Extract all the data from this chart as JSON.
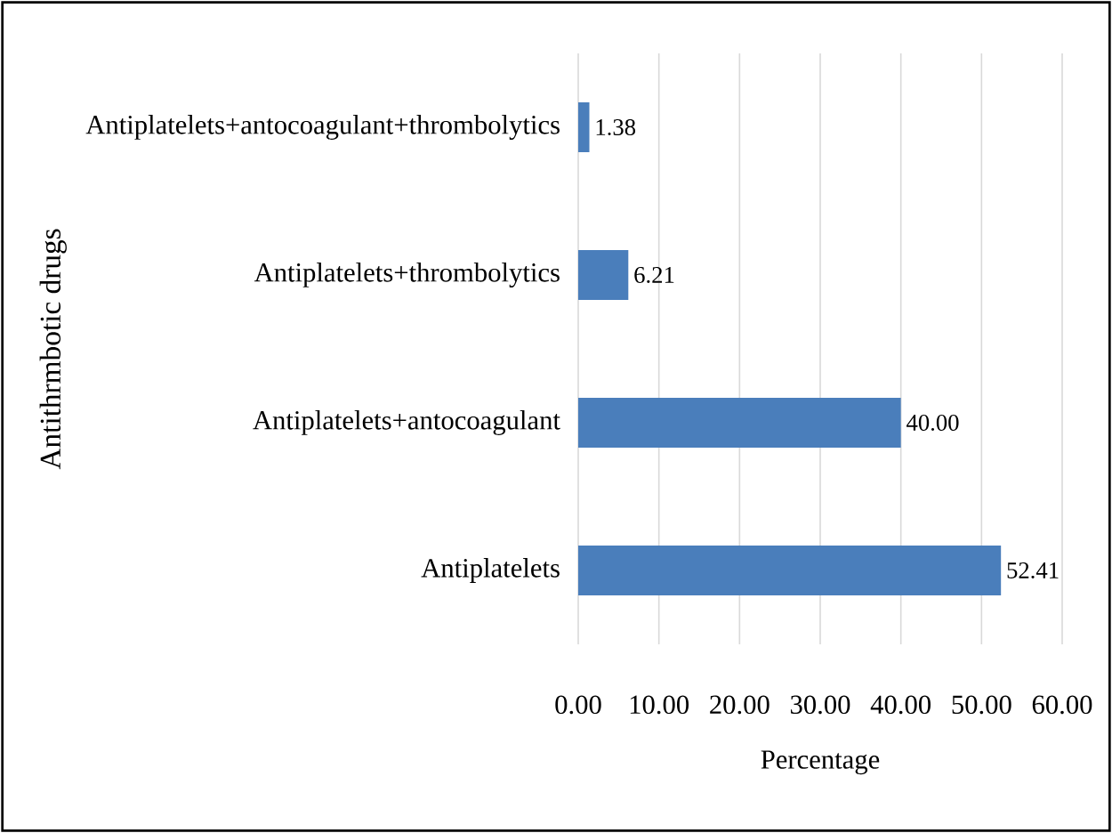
{
  "chart_data": {
    "type": "bar",
    "orientation": "horizontal",
    "ylabel": "Antithrmbotic drugs",
    "xlabel": "Percentage",
    "categories": [
      "Antiplatelets+antocoagulant+thrombolytics",
      "Antiplatelets+thrombolytics",
      "Antiplatelets+antocoagulant",
      "Antiplatelets"
    ],
    "values": [
      1.38,
      6.21,
      40.0,
      52.41
    ],
    "value_labels": [
      "1.38",
      "6.21",
      "40.00",
      "52.41"
    ],
    "color": "#4a7ebb",
    "xlim": [
      0,
      60
    ],
    "xticks": [
      {
        "value": 0,
        "label": "0.00"
      },
      {
        "value": 10,
        "label": "10.00"
      },
      {
        "value": 20,
        "label": "20.00"
      },
      {
        "value": 30,
        "label": "30.00"
      },
      {
        "value": 40,
        "label": "40.00"
      },
      {
        "value": 50,
        "label": "50.00"
      },
      {
        "value": 60,
        "label": "60.00"
      }
    ],
    "grid": "x"
  }
}
